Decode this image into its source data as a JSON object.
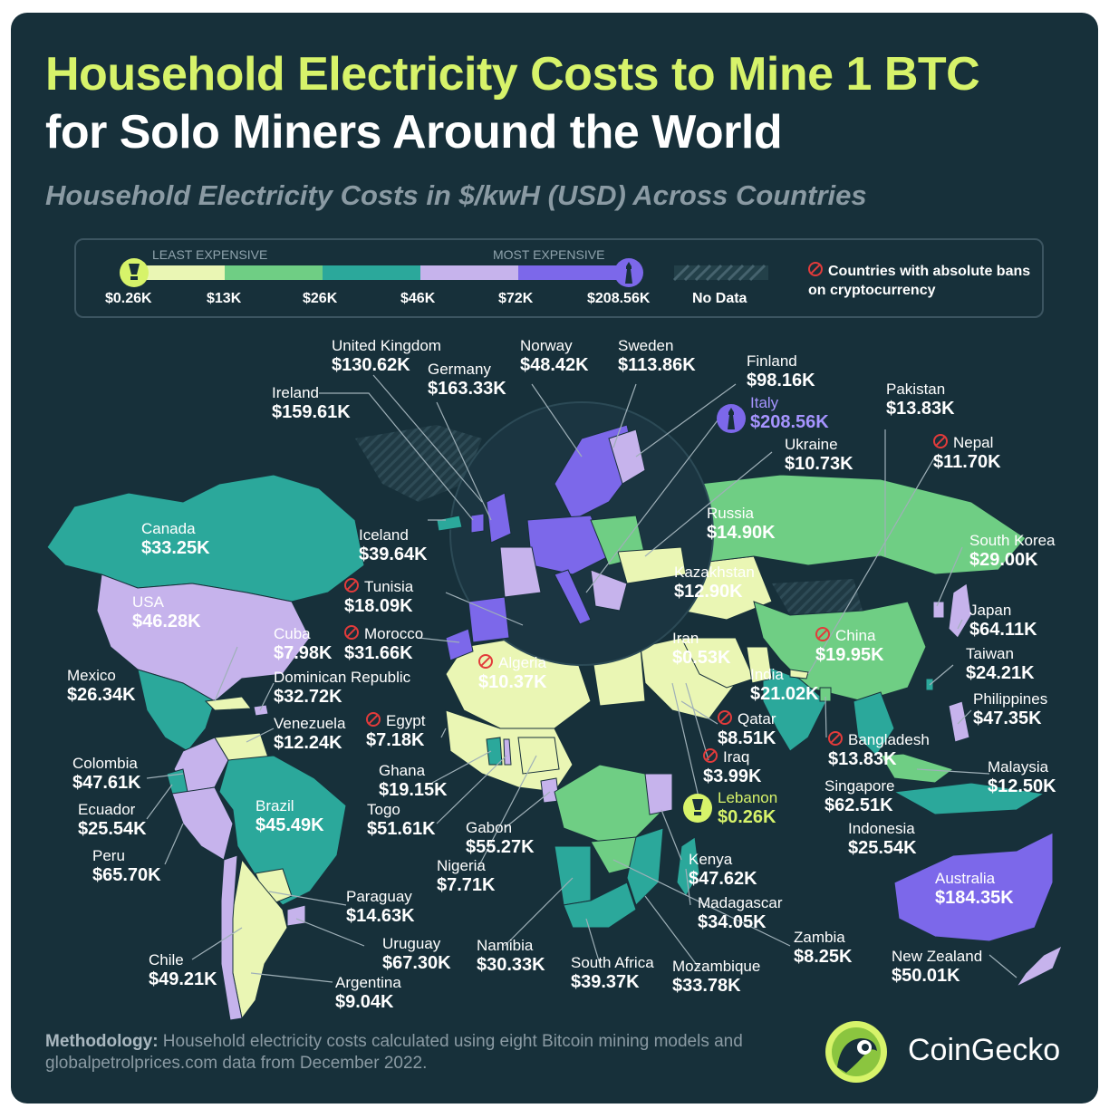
{
  "title_line1": "Household Electricity Costs to Mine 1 BTC",
  "title_line2": "for Solo Miners Around the World",
  "subtitle": "Household Electricity Costs in $/kwH (USD) Across Countries",
  "legend": {
    "least_label": "LEAST EXPENSIVE",
    "most_label": "MOST EXPENSIVE",
    "ticks": [
      "$0.26K",
      "$13K",
      "$26K",
      "$46K",
      "$72K",
      "$208.56K"
    ],
    "no_data_label": "No Data",
    "ban_label": "Countries with absolute bans on cryptocurrency",
    "colors": [
      "#eaf6b4",
      "#6fce84",
      "#2ba89b",
      "#c6b3ec",
      "#7c68ea"
    ],
    "no_data_color": "#2c4550",
    "ban_color": "#e23b3b"
  },
  "countries": [
    {
      "name": "United Kingdom",
      "value": "$130.62K",
      "ban": false
    },
    {
      "name": "Germany",
      "value": "$163.33K",
      "ban": false
    },
    {
      "name": "Norway",
      "value": "$48.42K",
      "ban": false
    },
    {
      "name": "Sweden",
      "value": "$113.86K",
      "ban": false
    },
    {
      "name": "Finland",
      "value": "$98.16K",
      "ban": false
    },
    {
      "name": "Ireland",
      "value": "$159.61K",
      "ban": false
    },
    {
      "name": "Italy",
      "value": "$208.56K",
      "ban": false
    },
    {
      "name": "Pakistan",
      "value": "$13.83K",
      "ban": false
    },
    {
      "name": "Ukraine",
      "value": "$10.73K",
      "ban": false
    },
    {
      "name": "Nepal",
      "value": "$11.70K",
      "ban": true
    },
    {
      "name": "Canada",
      "value": "$33.25K",
      "ban": false
    },
    {
      "name": "Iceland",
      "value": "$39.64K",
      "ban": false
    },
    {
      "name": "Russia",
      "value": "$14.90K",
      "ban": false
    },
    {
      "name": "South Korea",
      "value": "$29.00K",
      "ban": false
    },
    {
      "name": "Tunisia",
      "value": "$18.09K",
      "ban": true
    },
    {
      "name": "Kazakhstan",
      "value": "$12.90K",
      "ban": false
    },
    {
      "name": "USA",
      "value": "$46.28K",
      "ban": false
    },
    {
      "name": "Japan",
      "value": "$64.11K",
      "ban": false
    },
    {
      "name": "Cuba",
      "value": "$7.98K",
      "ban": false
    },
    {
      "name": "Morocco",
      "value": "$31.66K",
      "ban": true
    },
    {
      "name": "Iran",
      "value": "$0.53K",
      "ban": false
    },
    {
      "name": "China",
      "value": "$19.95K",
      "ban": true
    },
    {
      "name": "Taiwan",
      "value": "$24.21K",
      "ban": false
    },
    {
      "name": "Algeria",
      "value": "$10.37K",
      "ban": true
    },
    {
      "name": "Mexico",
      "value": "$26.34K",
      "ban": false
    },
    {
      "name": "Dominican Republic",
      "value": "$32.72K",
      "ban": false
    },
    {
      "name": "India",
      "value": "$21.02K",
      "ban": false
    },
    {
      "name": "Philippines",
      "value": "$47.35K",
      "ban": false
    },
    {
      "name": "Venezuela",
      "value": "$12.24K",
      "ban": false
    },
    {
      "name": "Egypt",
      "value": "$7.18K",
      "ban": true
    },
    {
      "name": "Qatar",
      "value": "$8.51K",
      "ban": true
    },
    {
      "name": "Bangladesh",
      "value": "$13.83K",
      "ban": true
    },
    {
      "name": "Colombia",
      "value": "$47.61K",
      "ban": false
    },
    {
      "name": "Iraq",
      "value": "$3.99K",
      "ban": true
    },
    {
      "name": "Malaysia",
      "value": "$12.50K",
      "ban": false
    },
    {
      "name": "Ghana",
      "value": "$19.15K",
      "ban": false
    },
    {
      "name": "Singapore",
      "value": "$62.51K",
      "ban": false
    },
    {
      "name": "Lebanon",
      "value": "$0.26K",
      "ban": false
    },
    {
      "name": "Ecuador",
      "value": "$25.54K",
      "ban": false
    },
    {
      "name": "Brazil",
      "value": "$45.49K",
      "ban": false
    },
    {
      "name": "Togo",
      "value": "$51.61K",
      "ban": false
    },
    {
      "name": "Gabon",
      "value": "$55.27K",
      "ban": false
    },
    {
      "name": "Indonesia",
      "value": "$25.54K",
      "ban": false
    },
    {
      "name": "Peru",
      "value": "$65.70K",
      "ban": false
    },
    {
      "name": "Nigeria",
      "value": "$7.71K",
      "ban": false
    },
    {
      "name": "Kenya",
      "value": "$47.62K",
      "ban": false
    },
    {
      "name": "Australia",
      "value": "$184.35K",
      "ban": false
    },
    {
      "name": "Paraguay",
      "value": "$14.63K",
      "ban": false
    },
    {
      "name": "Madagascar",
      "value": "$34.05K",
      "ban": false
    },
    {
      "name": "Zambia",
      "value": "$8.25K",
      "ban": false
    },
    {
      "name": "Uruguay",
      "value": "$67.30K",
      "ban": false
    },
    {
      "name": "Namibia",
      "value": "$30.33K",
      "ban": false
    },
    {
      "name": "New Zealand",
      "value": "$50.01K",
      "ban": false
    },
    {
      "name": "Chile",
      "value": "$49.21K",
      "ban": false
    },
    {
      "name": "South Africa",
      "value": "$39.37K",
      "ban": false
    },
    {
      "name": "Mozambique",
      "value": "$33.78K",
      "ban": false
    },
    {
      "name": "Argentina",
      "value": "$9.04K",
      "ban": false
    }
  ],
  "methodology_label": "Methodology:",
  "methodology_text": " Household electricity costs calculated using eight Bitcoin mining models and globalpetrolprices.com data from December 2022.",
  "brand_name": "CoinGecko"
}
